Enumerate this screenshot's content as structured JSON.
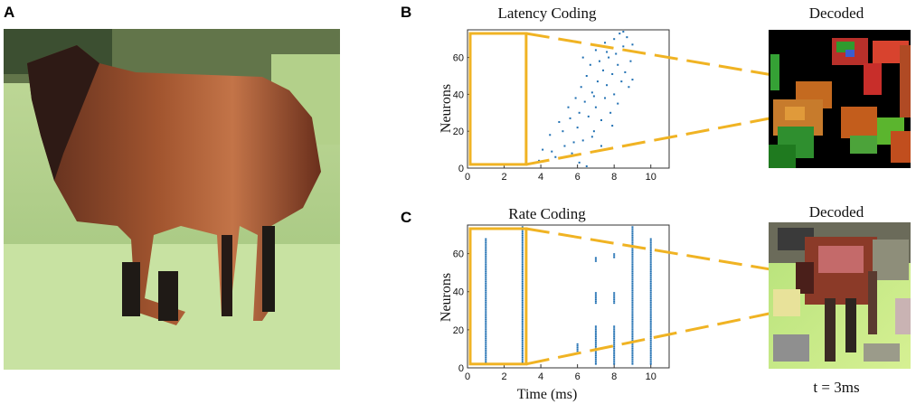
{
  "panels": {
    "a": {
      "letter": "A"
    },
    "b": {
      "letter": "B",
      "title": "Latency Coding",
      "decoded_title": "Decoded"
    },
    "c": {
      "letter": "C",
      "title": "Rate Coding",
      "decoded_title": "Decoded"
    }
  },
  "axes": {
    "ylabel": "Neurons",
    "xlabel": "Time (ms)"
  },
  "caption": "t = 3ms",
  "colors": {
    "highlight": "#f0b323",
    "spike": "#1f6fb2",
    "axis": "#333333"
  },
  "chart_data": [
    {
      "type": "scatter",
      "title": "Latency Coding",
      "xlabel": "",
      "ylabel": "Neurons",
      "xlim": [
        0,
        11
      ],
      "ylim": [
        0,
        75
      ],
      "xticks": [
        0,
        2,
        4,
        6,
        8,
        10
      ],
      "yticks": [
        0,
        20,
        40,
        60
      ],
      "points": [
        [
          3.9,
          4
        ],
        [
          4.1,
          10
        ],
        [
          4.5,
          18
        ],
        [
          4.6,
          9
        ],
        [
          4.8,
          6
        ],
        [
          5.0,
          25
        ],
        [
          5.2,
          20
        ],
        [
          5.3,
          12
        ],
        [
          5.5,
          33
        ],
        [
          5.6,
          27
        ],
        [
          5.7,
          8
        ],
        [
          5.9,
          38
        ],
        [
          6.0,
          22
        ],
        [
          6.1,
          30
        ],
        [
          6.1,
          3
        ],
        [
          6.2,
          44
        ],
        [
          6.3,
          15
        ],
        [
          6.4,
          36
        ],
        [
          6.5,
          50
        ],
        [
          6.5,
          1
        ],
        [
          6.6,
          28
        ],
        [
          6.7,
          56
        ],
        [
          6.8,
          41
        ],
        [
          6.9,
          20
        ],
        [
          7.0,
          64
        ],
        [
          7.0,
          33
        ],
        [
          7.1,
          47
        ],
        [
          7.2,
          58
        ],
        [
          7.3,
          26
        ],
        [
          7.4,
          53
        ],
        [
          7.5,
          38
        ],
        [
          7.5,
          68
        ],
        [
          7.6,
          45
        ],
        [
          7.7,
          60
        ],
        [
          7.8,
          30
        ],
        [
          7.9,
          51
        ],
        [
          8.0,
          70
        ],
        [
          8.0,
          40
        ],
        [
          8.1,
          62
        ],
        [
          8.2,
          56
        ],
        [
          8.3,
          73
        ],
        [
          8.4,
          47
        ],
        [
          8.5,
          66
        ],
        [
          8.6,
          52
        ],
        [
          8.7,
          71
        ],
        [
          8.8,
          44
        ],
        [
          8.9,
          58
        ],
        [
          9.0,
          67
        ],
        [
          9.0,
          48
        ],
        [
          8.5,
          74
        ],
        [
          6.8,
          17
        ],
        [
          7.3,
          12
        ],
        [
          5.8,
          14
        ],
        [
          8.2,
          35
        ],
        [
          7.9,
          23
        ],
        [
          6.3,
          60
        ],
        [
          6.9,
          39
        ],
        [
          7.6,
          63
        ]
      ],
      "highlight_window": [
        0,
        3.2
      ]
    },
    {
      "type": "scatter",
      "title": "Rate Coding",
      "xlabel": "Time (ms)",
      "ylabel": "Neurons",
      "xlim": [
        0,
        11
      ],
      "ylim": [
        0,
        75
      ],
      "xticks": [
        0,
        2,
        4,
        6,
        8,
        10
      ],
      "yticks": [
        0,
        20,
        40,
        60
      ],
      "spike_columns": [
        {
          "t": 1,
          "from": 2,
          "to": 68
        },
        {
          "t": 3,
          "from": 2,
          "to": 74
        },
        {
          "t": 6,
          "from": 8,
          "to": 13
        },
        {
          "t": 7,
          "from": 2,
          "to": 22
        },
        {
          "t": 7,
          "from": 34,
          "to": 40
        },
        {
          "t": 7,
          "from": 56,
          "to": 58
        },
        {
          "t": 8,
          "from": 2,
          "to": 22
        },
        {
          "t": 8,
          "from": 34,
          "to": 40
        },
        {
          "t": 8,
          "from": 58,
          "to": 60
        },
        {
          "t": 9,
          "from": 2,
          "to": 74
        },
        {
          "t": 10,
          "from": 2,
          "to": 68
        }
      ],
      "highlight_window": [
        0,
        3.2
      ]
    }
  ]
}
